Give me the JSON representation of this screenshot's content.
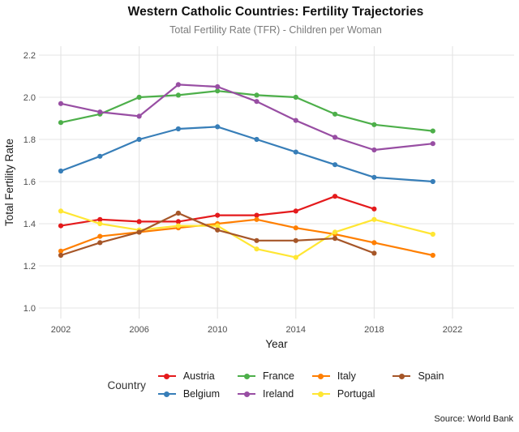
{
  "footer": {
    "source": "Source: World Bank"
  },
  "chart_data": {
    "type": "line",
    "title": "Western Catholic Countries: Fertility Trajectories",
    "subtitle": "Total Fertility Rate (TFR) - Children per Woman",
    "xlabel": "Year",
    "ylabel": "Total Fertility Rate",
    "legend_title": "Country",
    "legend_position": "bottom",
    "grid": true,
    "xlim": [
      2000.9,
      2025.1
    ],
    "ylim": [
      0.95,
      2.24
    ],
    "x_ticks": [
      2002,
      2006,
      2010,
      2014,
      2018,
      2022
    ],
    "y_ticks": [
      1.0,
      1.2,
      1.4,
      1.6,
      1.8,
      2.0,
      2.2
    ],
    "x": [
      2002,
      2004,
      2006,
      2008,
      2010,
      2012,
      2014,
      2016,
      2018,
      2021
    ],
    "series": [
      {
        "name": "Austria",
        "color": "#e41a1c",
        "values": [
          1.39,
          1.42,
          1.41,
          1.41,
          1.44,
          1.44,
          1.46,
          1.53,
          1.47,
          null
        ]
      },
      {
        "name": "Belgium",
        "color": "#377eb8",
        "values": [
          1.65,
          1.72,
          1.8,
          1.85,
          1.86,
          1.8,
          1.74,
          1.68,
          1.62,
          1.6
        ]
      },
      {
        "name": "France",
        "color": "#4daf4a",
        "values": [
          1.88,
          1.92,
          2.0,
          2.01,
          2.03,
          2.01,
          2.0,
          1.92,
          1.87,
          1.84
        ]
      },
      {
        "name": "Ireland",
        "color": "#984ea3",
        "values": [
          1.97,
          1.93,
          1.91,
          2.06,
          2.05,
          1.98,
          1.89,
          1.81,
          1.75,
          1.78
        ]
      },
      {
        "name": "Italy",
        "color": "#ff7f00",
        "values": [
          1.27,
          1.34,
          1.36,
          1.38,
          1.4,
          1.42,
          1.38,
          1.35,
          1.31,
          1.25
        ]
      },
      {
        "name": "Portugal",
        "color": "#ffe633",
        "values": [
          1.46,
          1.4,
          1.37,
          1.39,
          1.39,
          1.28,
          1.24,
          1.36,
          1.42,
          1.35
        ]
      },
      {
        "name": "Spain",
        "color": "#a65628",
        "values": [
          1.25,
          1.31,
          1.36,
          1.45,
          1.37,
          1.32,
          1.32,
          1.33,
          1.26,
          null
        ]
      }
    ]
  }
}
